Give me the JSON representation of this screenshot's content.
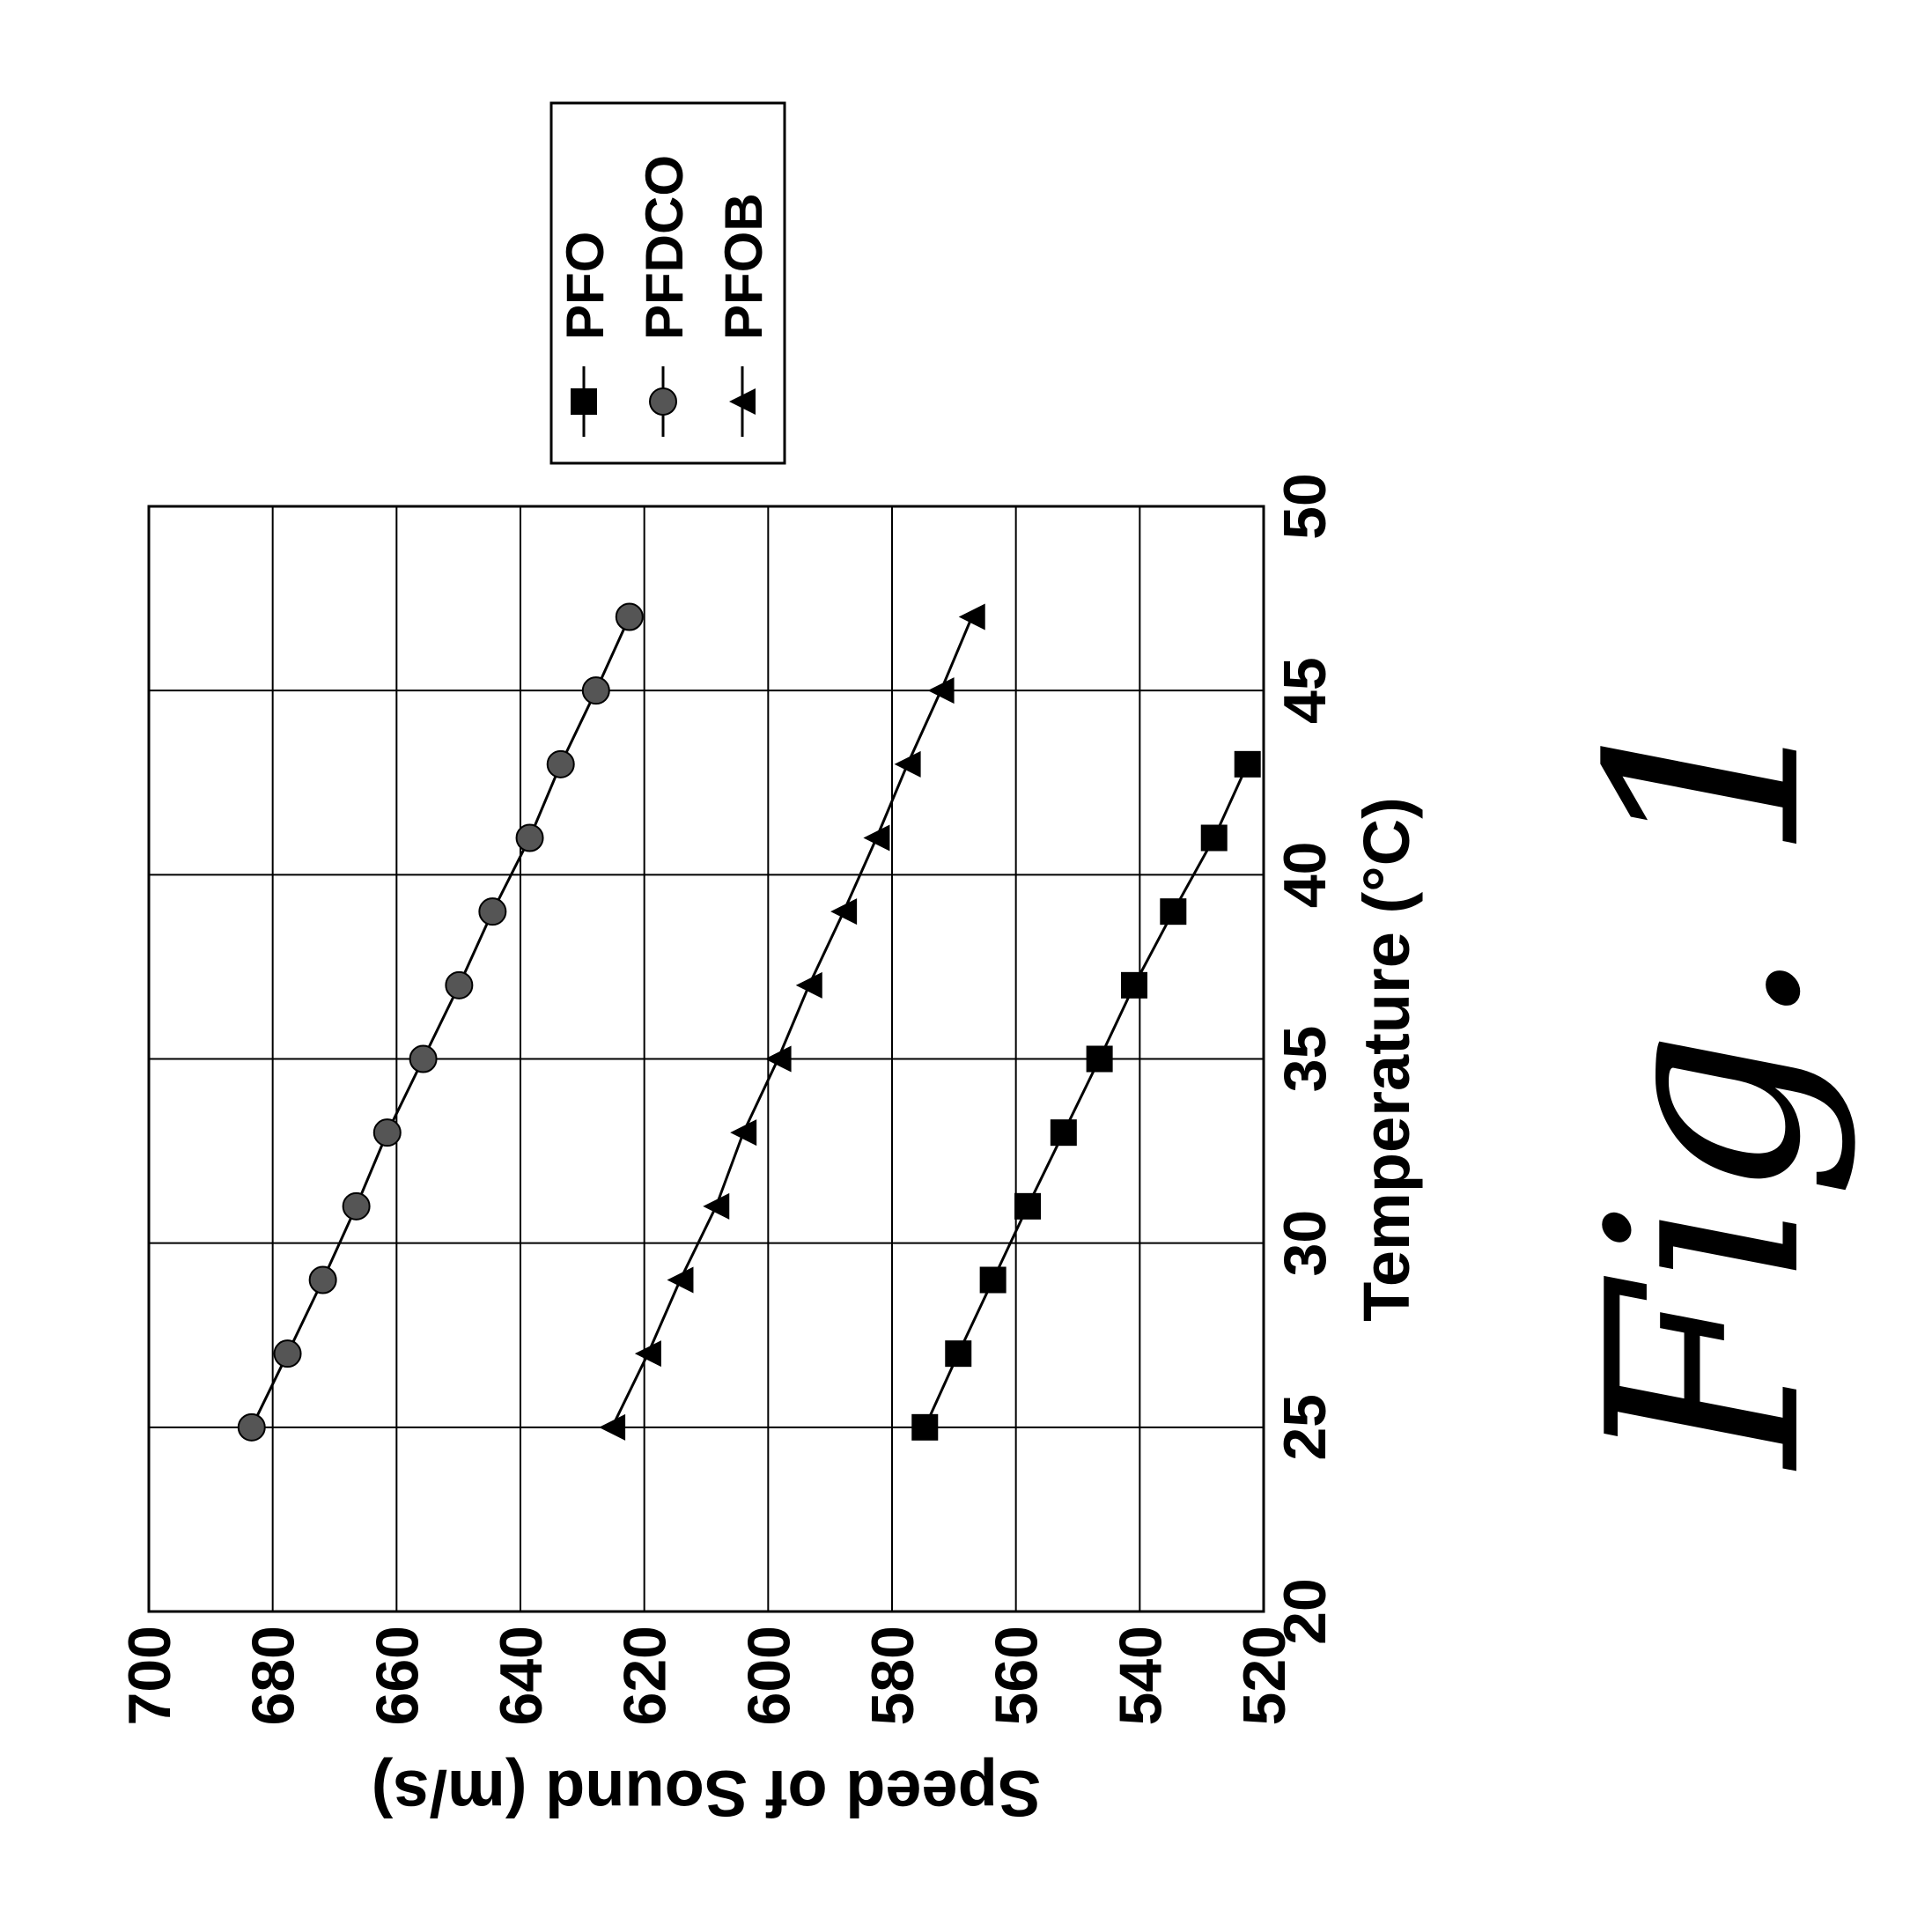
{
  "chart_data": {
    "type": "line",
    "x_label": "Temperature (°C)",
    "y_label": "Speed of Sound (m/s)",
    "annotation": "Fig. 1",
    "xlim": [
      20,
      50
    ],
    "xticks": [
      20,
      25,
      30,
      35,
      40,
      45,
      50
    ],
    "ylim": [
      520,
      700
    ],
    "yticks": [
      520,
      540,
      560,
      580,
      600,
      620,
      640,
      660,
      680,
      700
    ],
    "grid": true,
    "legend": "right",
    "series": [
      {
        "name": "PFO",
        "color": "#000000",
        "marker": "square",
        "x": [
          25,
          27,
          29,
          31,
          33,
          35,
          37,
          39,
          41,
          43
        ],
        "values": [
          574.7,
          569.3,
          563.7,
          558.1,
          552.3,
          546.5,
          540.9,
          534.6,
          528.0,
          522.6
        ]
      },
      {
        "name": "PFDCO",
        "color": "#555555",
        "marker": "circle",
        "x": [
          25,
          27,
          29,
          31,
          33,
          35,
          37,
          39,
          41,
          43,
          45,
          47
        ],
        "values": [
          683.4,
          677.6,
          671.9,
          666.5,
          661.5,
          655.7,
          649.9,
          644.5,
          638.5,
          633.5,
          627.8,
          622.4
        ]
      },
      {
        "name": "PFOB",
        "color": "#000000",
        "marker": "triangle",
        "x": [
          25,
          27,
          29,
          31,
          33,
          35,
          37,
          39,
          41,
          43,
          45,
          47
        ],
        "values": [
          625.2,
          619.4,
          614.2,
          608.4,
          604.0,
          598.4,
          593.4,
          587.8,
          582.5,
          577.5,
          572.1,
          567.1
        ]
      }
    ]
  }
}
